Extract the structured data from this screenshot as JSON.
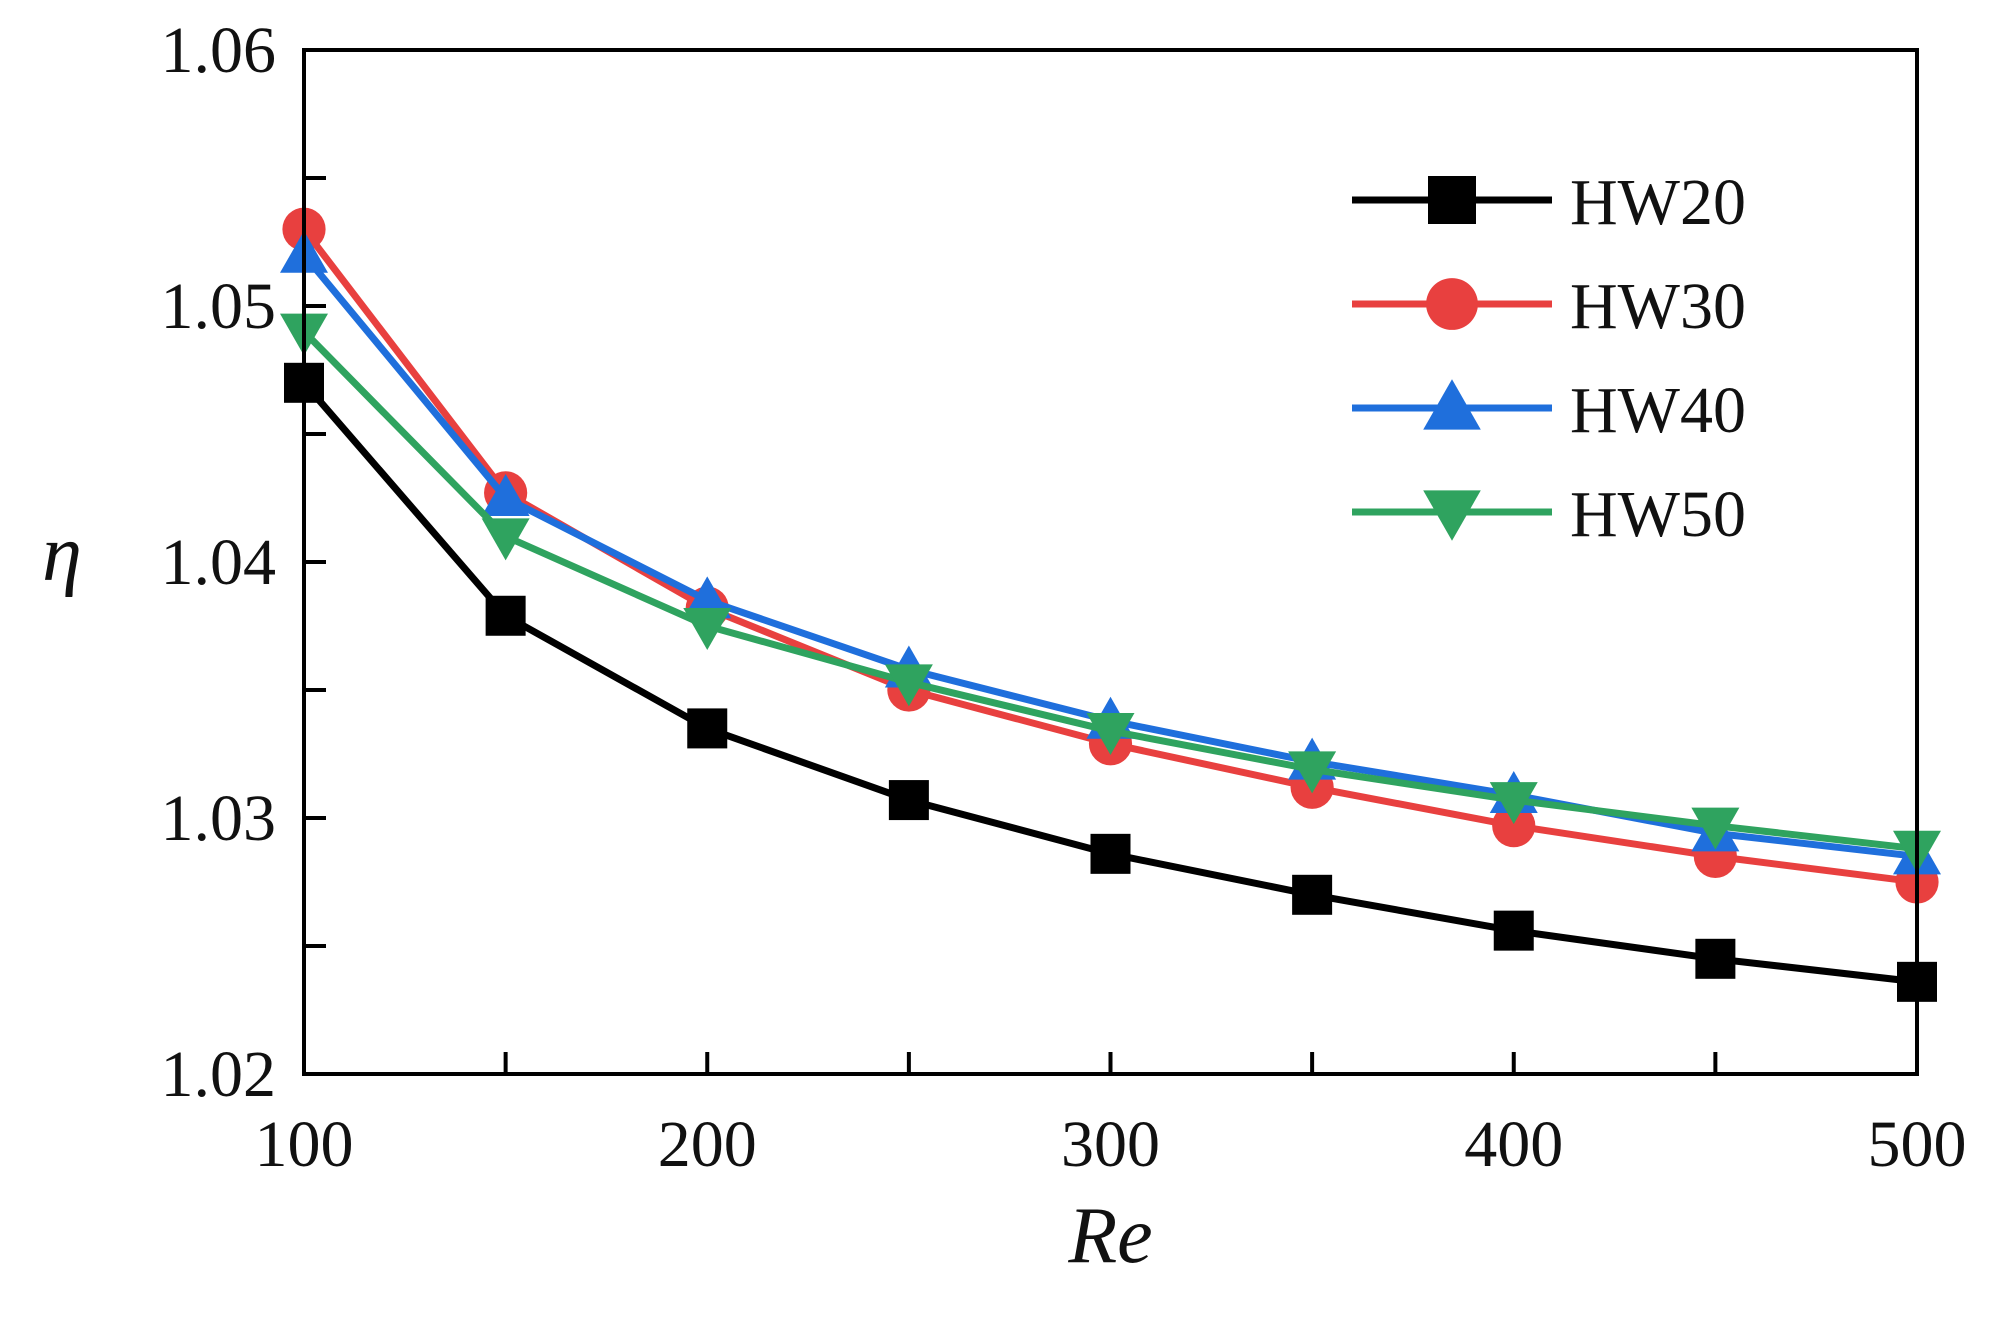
{
  "chart_data": {
    "type": "line",
    "title": "",
    "xlabel": "Re",
    "ylabel": "η",
    "xlim": [
      100,
      500
    ],
    "ylim": [
      1.02,
      1.06
    ],
    "x_ticks": [
      100,
      200,
      300,
      400,
      500
    ],
    "x_tick_labels": [
      "100",
      "200",
      "300",
      "400",
      "500"
    ],
    "y_ticks": [
      1.02,
      1.03,
      1.04,
      1.05,
      1.06
    ],
    "y_tick_labels": [
      "1.02",
      "1.03",
      "1.04",
      "1.05",
      "1.06"
    ],
    "x_minor_ticks": [
      150,
      250,
      350,
      450
    ],
    "y_minor_ticks": [
      1.025,
      1.035,
      1.045,
      1.055
    ],
    "grid": false,
    "legend_position": "top-right",
    "x": [
      100,
      150,
      200,
      250,
      300,
      350,
      400,
      450,
      500
    ],
    "series": [
      {
        "name": "HW20",
        "color": "#000000",
        "marker": "square",
        "values": [
          1.047,
          1.0379,
          1.0335,
          1.0307,
          1.0286,
          1.027,
          1.0256,
          1.0245,
          1.0236
        ]
      },
      {
        "name": "HW30",
        "color": "#e8403f",
        "marker": "circle",
        "values": [
          1.053,
          1.0427,
          1.0382,
          1.035,
          1.0329,
          1.0312,
          1.0297,
          1.0285,
          1.0275
        ]
      },
      {
        "name": "HW40",
        "color": "#1f6fdc",
        "marker": "triangle-up",
        "values": [
          1.052,
          1.0425,
          1.0385,
          1.0358,
          1.0338,
          1.0322,
          1.0309,
          1.0294,
          1.0285
        ]
      },
      {
        "name": "HW50",
        "color": "#2fa35f",
        "marker": "triangle-down",
        "values": [
          1.049,
          1.041,
          1.0375,
          1.0353,
          1.0334,
          1.0319,
          1.0307,
          1.0297,
          1.0288
        ]
      }
    ]
  }
}
